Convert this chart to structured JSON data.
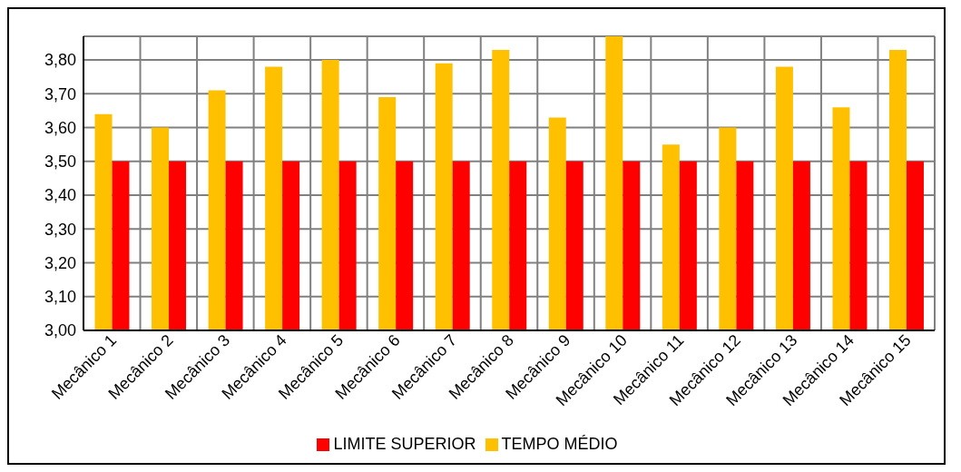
{
  "chart_data": {
    "type": "bar",
    "categories": [
      "Mecânico 1",
      "Mecânico 2",
      "Mecânico 3",
      "Mecânico 4",
      "Mecânico 5",
      "Mecânico 6",
      "Mecânico 7",
      "Mecânico 8",
      "Mecânico 9",
      "Mecânico 10",
      "Mecânico 11",
      "Mecânico 12",
      "Mecânico 13",
      "Mecânico 14",
      "Mecânico 15"
    ],
    "series": [
      {
        "name": "TEMPO MÉDIO",
        "color": "#ffc000",
        "values": [
          3.64,
          3.6,
          3.71,
          3.78,
          3.8,
          3.69,
          3.79,
          3.83,
          3.63,
          3.87,
          3.55,
          3.6,
          3.78,
          3.66,
          3.83
        ]
      },
      {
        "name": "LIMITE SUPERIOR",
        "color": "#ff0000",
        "values": [
          3.5,
          3.5,
          3.5,
          3.5,
          3.5,
          3.5,
          3.5,
          3.5,
          3.5,
          3.5,
          3.5,
          3.5,
          3.5,
          3.5,
          3.5
        ]
      }
    ],
    "ylim": [
      3,
      3.87
    ],
    "yticks": [
      {
        "value": 3,
        "label": "3,00"
      },
      {
        "value": 3.1,
        "label": "3,10"
      },
      {
        "value": 3.2,
        "label": "3,20"
      },
      {
        "value": 3.3,
        "label": "3,30"
      },
      {
        "value": 3.4,
        "label": "3,40"
      },
      {
        "value": 3.5,
        "label": "3,50"
      },
      {
        "value": 3.6,
        "label": "3,60"
      },
      {
        "value": 3.7,
        "label": "3,70"
      },
      {
        "value": 3.8,
        "label": "3,80"
      }
    ],
    "grid": true,
    "legend": "bottom"
  }
}
